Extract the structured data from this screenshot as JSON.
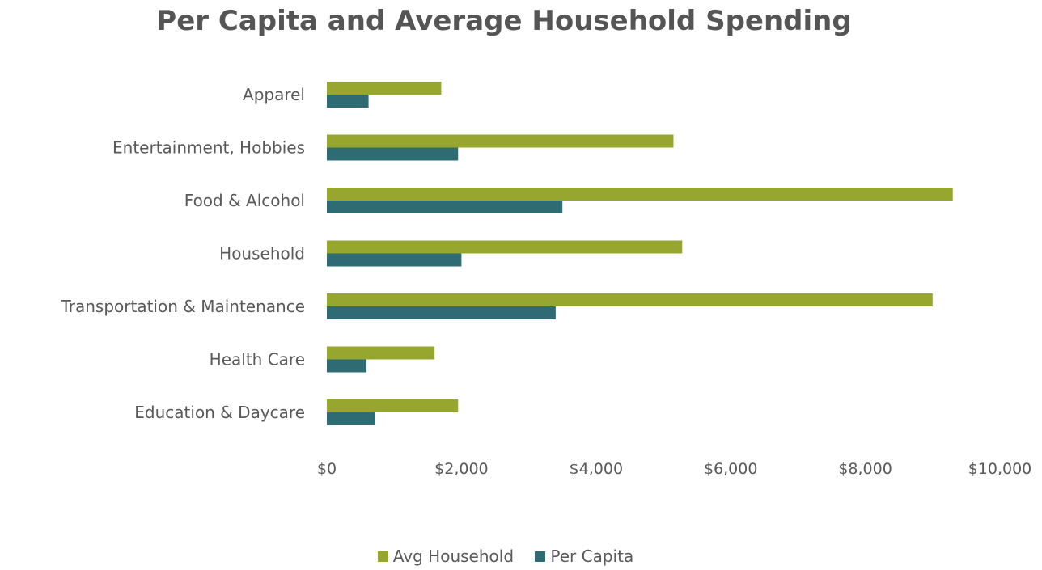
{
  "chart_data": {
    "type": "bar",
    "orientation": "horizontal",
    "title": "Per Capita and Average Household Spending",
    "categories": [
      "Apparel",
      "Entertainment, Hobbies",
      "Food & Alcohol",
      "Household",
      "Transportation & Maintenance",
      "Health Care",
      "Education & Daycare"
    ],
    "series": [
      {
        "name": "Avg Household",
        "color": "#96A62E",
        "values": [
          1700,
          5150,
          9300,
          5280,
          9000,
          1600,
          1950
        ]
      },
      {
        "name": "Per Capita",
        "color": "#2F6B72",
        "values": [
          620,
          1950,
          3500,
          2000,
          3400,
          590,
          720
        ]
      }
    ],
    "xlim": [
      0,
      10000
    ],
    "x_ticks": [
      "$0",
      "$2,000",
      "$4,000",
      "$6,000",
      "$8,000",
      "$10,000"
    ],
    "xlabel": "",
    "ylabel": "",
    "grid": false,
    "legend_position": "bottom"
  }
}
